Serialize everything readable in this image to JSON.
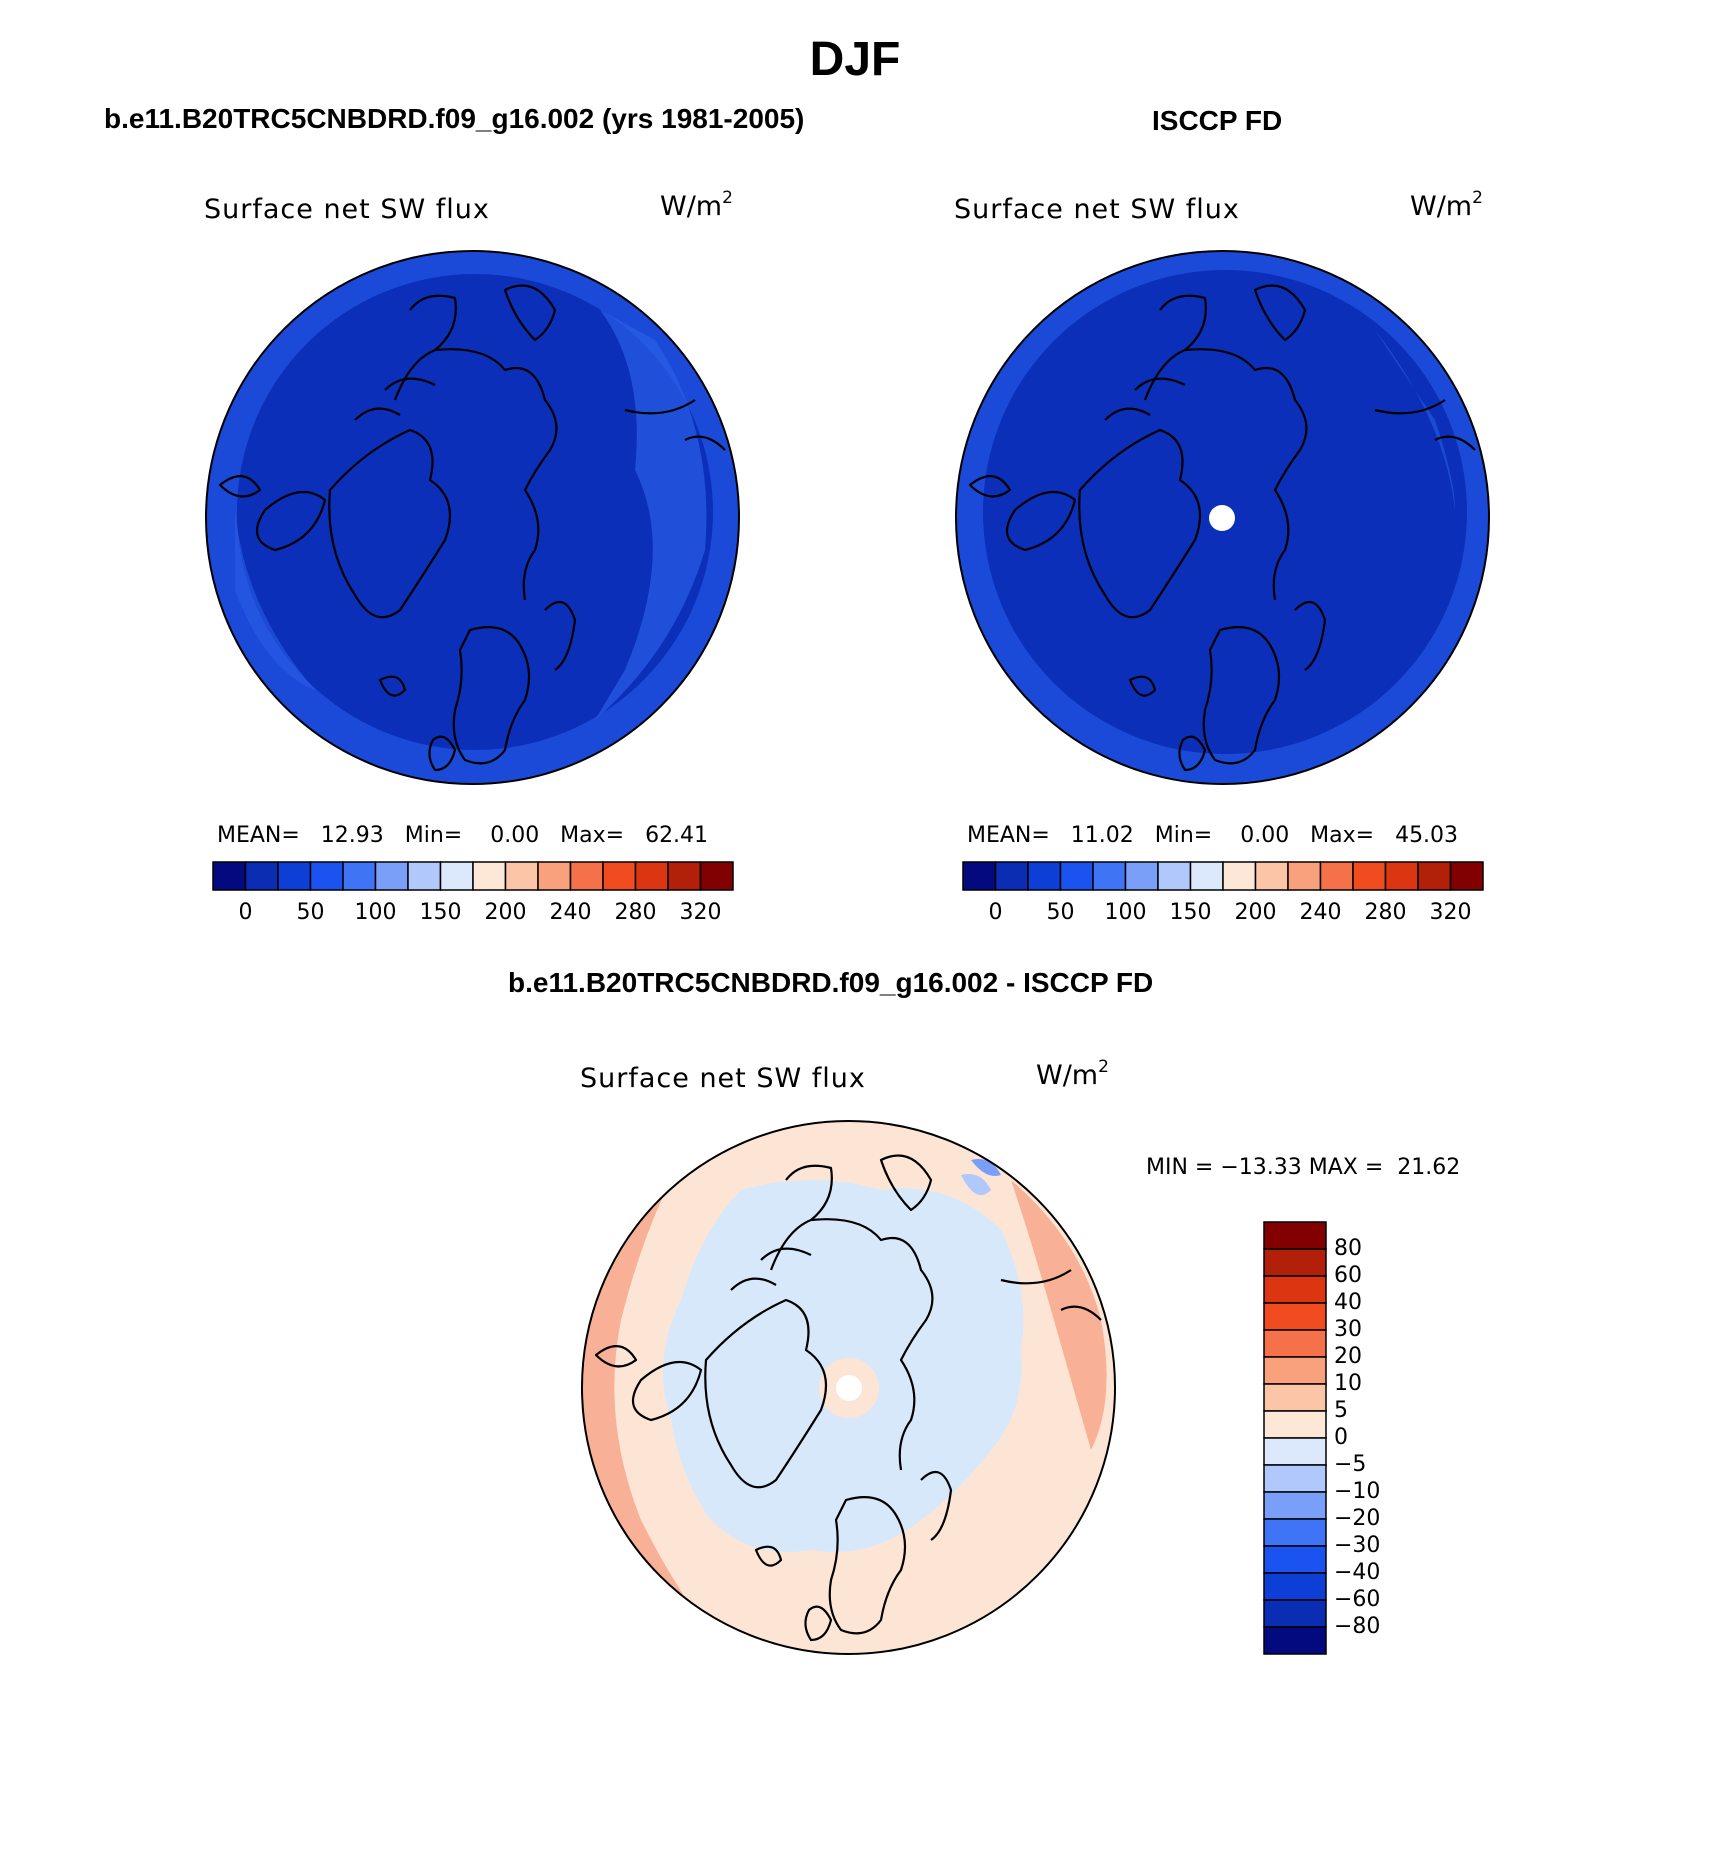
{
  "page": {
    "title": "DJF",
    "left_subtitle": "b.e11.B20TRC5CNBDRD.f09_g16.002 (yrs 1981-2005)",
    "right_subtitle": "ISCCP FD",
    "bottom_subtitle": "b.e11.B20TRC5CNBDRD.f09_g16.002 - ISCCP FD"
  },
  "panels": {
    "model": {
      "variable": "Surface net SW flux",
      "units_base": "W/m",
      "units_exp": "2",
      "stats": "MEAN=   12.93   Min=    0.00   Max=   62.41",
      "mean": 12.93,
      "min": 0.0,
      "max": 62.41
    },
    "obs": {
      "variable": "Surface net SW flux",
      "units_base": "W/m",
      "units_exp": "2",
      "stats": "MEAN=   11.02   Min=    0.00   Max=   45.03",
      "mean": 11.02,
      "min": 0.0,
      "max": 45.03
    },
    "diff": {
      "variable": "Surface net SW flux",
      "units_base": "W/m",
      "units_exp": "2",
      "stats": "MIN = −13.33 MAX =  21.62",
      "min": -13.33,
      "max": 21.62
    }
  },
  "colorbars": {
    "abs": {
      "colors": [
        "#03097f",
        "#0a2db4",
        "#0d3fd6",
        "#1b53f0",
        "#3f74f6",
        "#7a9ff8",
        "#b0c8fb",
        "#dce9fd",
        "#fde8d8",
        "#fcc5a8",
        "#f9a07c",
        "#f5714a",
        "#f04c1f",
        "#dc3511",
        "#b2200a",
        "#820000"
      ],
      "ticks": [
        "0",
        "50",
        "100",
        "150",
        "200",
        "240",
        "280",
        "320"
      ]
    },
    "diff": {
      "colors_top_to_bottom": [
        "#820000",
        "#b2200a",
        "#dc3511",
        "#f04c1f",
        "#f5714a",
        "#f9a07c",
        "#fcc5a8",
        "#fde8d8",
        "#dce9fd",
        "#b0c8fb",
        "#7a9ff8",
        "#3f74f6",
        "#1b53f0",
        "#0d3fd6",
        "#0a2db4",
        "#03097f"
      ],
      "ticks": [
        "80",
        "60",
        "40",
        "30",
        "20",
        "10",
        "5",
        "0",
        "−5",
        "−10",
        "−20",
        "−30",
        "−40",
        "−60",
        "−80"
      ]
    }
  },
  "colors": {
    "abs_dominant": "#0b2fb8",
    "abs_edge": "#1b4ad8",
    "diff_positive_light": "#fde5d5",
    "diff_positive_mid": "#f8b196",
    "diff_negative_light": "#d8e8fb"
  }
}
